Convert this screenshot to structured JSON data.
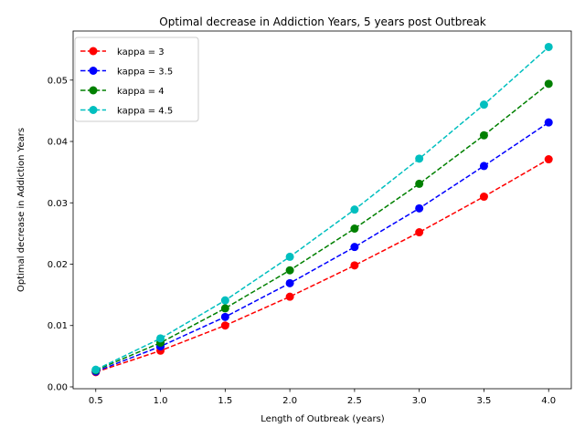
{
  "chart_data": {
    "type": "line",
    "title": "Optimal decrease in Addiction Years, 5 years post Outbreak",
    "xlabel": "Length of Outbreak (years)",
    "ylabel": "Optimal decrease in Addiction Years",
    "xlim": [
      0.325,
      4.175
    ],
    "ylim": [
      -0.0003,
      0.058
    ],
    "xticks": [
      0.5,
      1.0,
      1.5,
      2.0,
      2.5,
      3.0,
      3.5,
      4.0
    ],
    "xtick_labels": [
      "0.5",
      "1.0",
      "1.5",
      "2.0",
      "2.5",
      "3.0",
      "3.5",
      "4.0"
    ],
    "yticks": [
      0.0,
      0.01,
      0.02,
      0.03,
      0.04,
      0.05
    ],
    "ytick_labels": [
      "0.00",
      "0.01",
      "0.02",
      "0.03",
      "0.04",
      "0.05"
    ],
    "grid": false,
    "legend_position": "top-left",
    "x": [
      0.5,
      1.0,
      1.5,
      2.0,
      2.5,
      3.0,
      3.5,
      4.0
    ],
    "series": [
      {
        "name": "kappa = 3",
        "color": "#ff0000",
        "values": [
          0.0024,
          0.0059,
          0.01,
          0.0147,
          0.0198,
          0.0252,
          0.031,
          0.0371
        ]
      },
      {
        "name": "kappa = 3.5",
        "color": "#0000ff",
        "values": [
          0.0025,
          0.0066,
          0.0114,
          0.0169,
          0.0228,
          0.0291,
          0.036,
          0.0431
        ]
      },
      {
        "name": "kappa = 4",
        "color": "#008000",
        "values": [
          0.0027,
          0.0072,
          0.0128,
          0.019,
          0.0258,
          0.0331,
          0.041,
          0.0494
        ]
      },
      {
        "name": "kappa = 4.5",
        "color": "#00bfbf",
        "values": [
          0.0028,
          0.0079,
          0.0141,
          0.0212,
          0.0289,
          0.0372,
          0.046,
          0.0554
        ]
      }
    ]
  }
}
